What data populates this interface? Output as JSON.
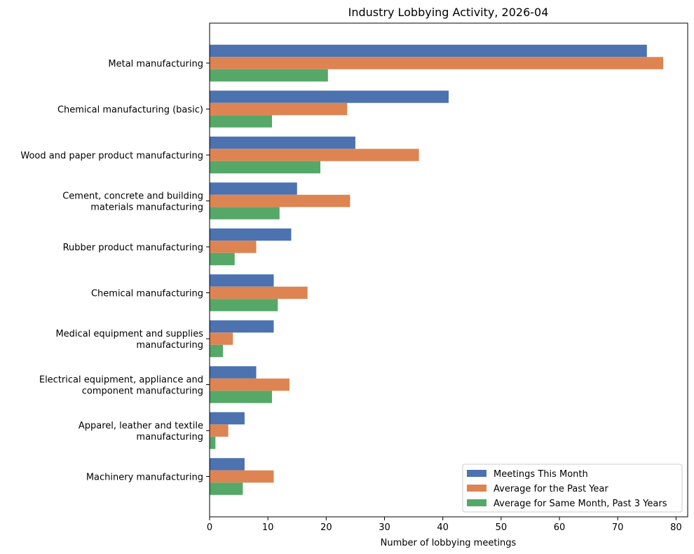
{
  "chart_data": {
    "type": "bar",
    "orientation": "horizontal",
    "title": "Industry Lobbying Activity, 2026-04",
    "xlabel": "Number of lobbying meetings",
    "ylabel": "",
    "xlim": [
      0,
      82
    ],
    "xticks": [
      0,
      10,
      20,
      30,
      40,
      50,
      60,
      70,
      80
    ],
    "grid": false,
    "legend_position": "bottom-right",
    "categories": [
      "Metal manufacturing",
      "Chemical manufacturing (basic)",
      "Wood and paper product manufacturing",
      "Cement, concrete and building materials manufacturing",
      "Rubber product manufacturing",
      "Chemical manufacturing",
      "Medical equipment and supplies manufacturing",
      "Electrical equipment, appliance and component manufacturing",
      "Apparel, leather and textile manufacturing",
      "Machinery manufacturing"
    ],
    "category_lines": [
      [
        "Metal manufacturing"
      ],
      [
        "Chemical manufacturing (basic)"
      ],
      [
        "Wood and paper product manufacturing"
      ],
      [
        "Cement, concrete and building",
        "materials manufacturing"
      ],
      [
        "Rubber product manufacturing"
      ],
      [
        "Chemical manufacturing"
      ],
      [
        "Medical equipment and supplies",
        "manufacturing"
      ],
      [
        "Electrical equipment, appliance and",
        "component manufacturing"
      ],
      [
        "Apparel, leather and textile",
        "manufacturing"
      ],
      [
        "Machinery manufacturing"
      ]
    ],
    "series": [
      {
        "name": "Meetings This Month",
        "color": "#4c72b0",
        "values": [
          75,
          41,
          25,
          15,
          14,
          11,
          11,
          8,
          6,
          6
        ]
      },
      {
        "name": "Average for the Past Year",
        "color": "#dd8452",
        "values": [
          77.8,
          23.6,
          35.9,
          24.1,
          8.0,
          16.8,
          4.0,
          13.7,
          3.2,
          11.0
        ]
      },
      {
        "name": "Average for Same Month, Past 3 Years",
        "color": "#55a868",
        "values": [
          20.3,
          10.7,
          19.0,
          12.0,
          4.3,
          11.7,
          2.3,
          10.7,
          1.0,
          5.7
        ]
      }
    ]
  }
}
